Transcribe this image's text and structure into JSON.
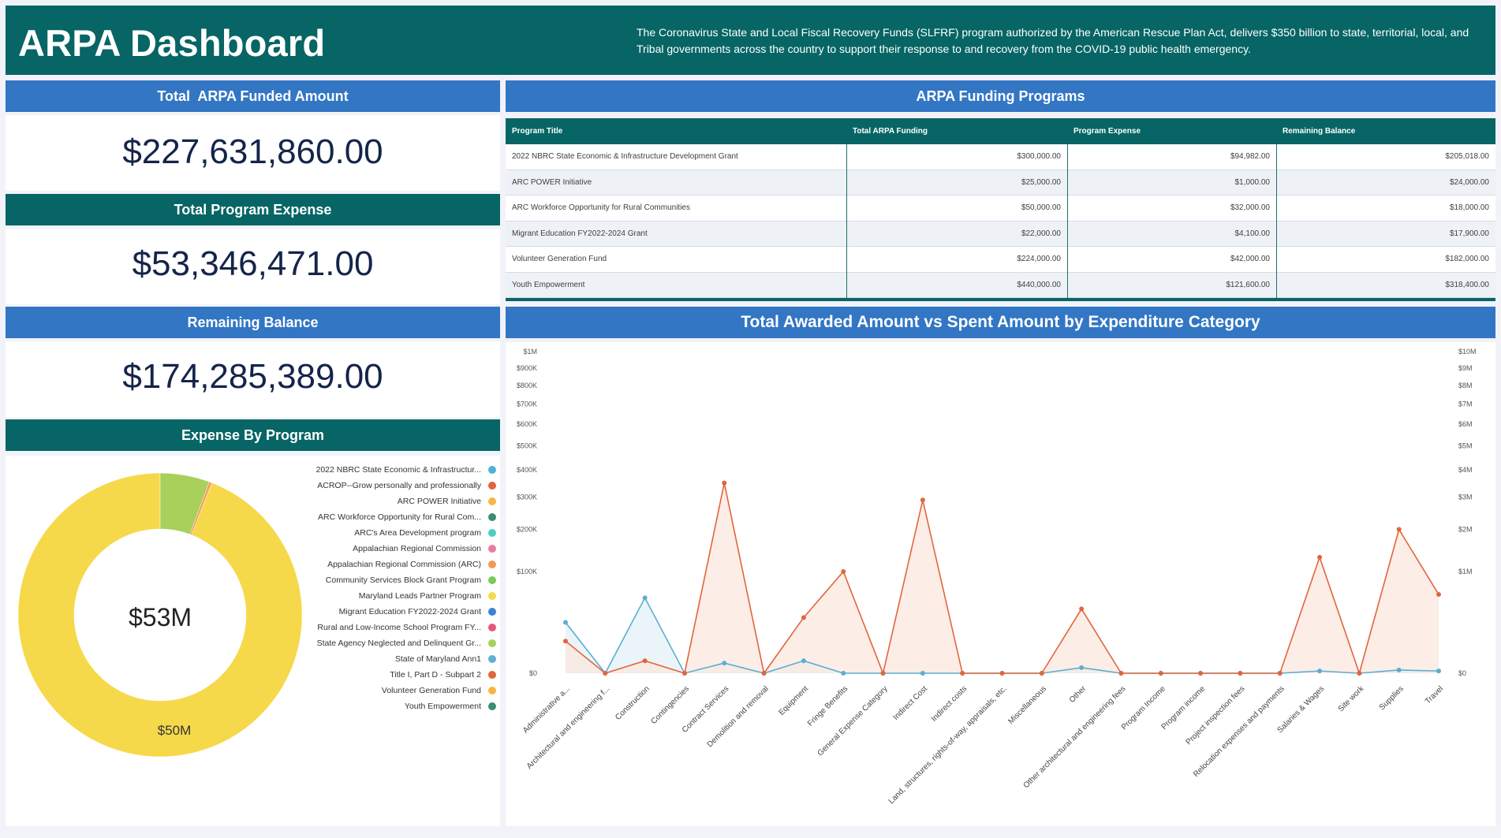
{
  "header": {
    "title": "ARPA Dashboard",
    "description": "The Coronavirus State and Local Fiscal Recovery Funds (SLFRF) program authorized by the American Rescue Plan Act, delivers $350 billion to state, territorial, local, and Tribal governments across the country to support their response to and recovery from the COVID-19 public health emergency."
  },
  "kpis": {
    "funded_label": "Total  ARPA Funded Amount",
    "funded_value": "$227,631,860.00",
    "expense_label": "Total Program Expense",
    "expense_value": "$53,346,471.00",
    "balance_label": "Remaining Balance",
    "balance_value": "$174,285,389.00"
  },
  "programs_table": {
    "title": "ARPA Funding Programs",
    "columns": [
      "Program Title",
      "Total ARPA Funding",
      "Program Expense",
      "Remaining Balance"
    ],
    "rows": [
      [
        "2022 NBRC State Economic & Infrastructure Development Grant",
        "$300,000.00",
        "$94,982.00",
        "$205,018.00"
      ],
      [
        "ARC POWER Initiative",
        "$25,000.00",
        "$1,000.00",
        "$24,000.00"
      ],
      [
        "ARC Workforce Opportunity for Rural Communities",
        "$50,000.00",
        "$32,000.00",
        "$18,000.00"
      ],
      [
        "Migrant Education FY2022-2024 Grant",
        "$22,000.00",
        "$4,100.00",
        "$17,900.00"
      ],
      [
        "Volunteer Generation Fund",
        "$224,000.00",
        "$42,000.00",
        "$182,000.00"
      ],
      [
        "Youth Empowerment",
        "$440,000.00",
        "$121,600.00",
        "$318,400.00"
      ]
    ]
  },
  "expense_by_program": {
    "title": "Expense By Program",
    "center_label": "$53M",
    "slice_label": "$50M",
    "legend": [
      {
        "label": "2022 NBRC State Economic & Infrastructur...",
        "color": "#4fb3d6"
      },
      {
        "label": "ACROP--Grow personally and professionally",
        "color": "#e0663c"
      },
      {
        "label": "ARC POWER Initiative",
        "color": "#f5b642"
      },
      {
        "label": "ARC Workforce Opportunity for Rural Com...",
        "color": "#3d8c74"
      },
      {
        "label": "ARC's Area Development program",
        "color": "#4ecdc4"
      },
      {
        "label": "Appalachian Regional Commission",
        "color": "#ea7aa0"
      },
      {
        "label": "Appalachian Regional Commission (ARC)",
        "color": "#f29a55"
      },
      {
        "label": "Community Services Block Grant Program",
        "color": "#7bc95a"
      },
      {
        "label": "Maryland Leads Partner Program",
        "color": "#f6d94a"
      },
      {
        "label": "Migrant Education FY2022-2024 Grant",
        "color": "#3d82d6"
      },
      {
        "label": "Rural and Low-Income School Program FY...",
        "color": "#e8577a"
      },
      {
        "label": "State Agency Neglected and Delinquent Gr...",
        "color": "#a8d05a"
      },
      {
        "label": "State of Maryland Ann1",
        "color": "#5fb0d4"
      },
      {
        "label": "Title I, Part D - Subpart 2",
        "color": "#e0663c"
      },
      {
        "label": "Volunteer Generation Fund",
        "color": "#f5b642"
      },
      {
        "label": "Youth Empowerment",
        "color": "#3d8c74"
      }
    ]
  },
  "chart_data": [
    {
      "type": "pie",
      "title": "Expense By Program",
      "variant": "donut",
      "slices": [
        {
          "label": "Maryland Leads Partner Program",
          "value": 50.0,
          "color": "#f6d94a"
        },
        {
          "label": "State Agency Neglected and Delinquent Gr...",
          "value": 3.0,
          "color": "#a8d05a"
        },
        {
          "label": "Appalachian Regional Commission (ARC)",
          "value": 0.15,
          "color": "#f29a55"
        }
      ],
      "units": "M"
    },
    {
      "type": "line",
      "title": "Total Awarded Amount vs Spent Amount by Expenditure Category",
      "categories": [
        "Administrative a...",
        "Architectural and engineering f...",
        "Construction",
        "Contingencies",
        "Contract Services",
        "Demolition and removal",
        "Equipment",
        "Fringe Benefits",
        "General Expense Category",
        "Indirect Cost",
        "Indirect costs",
        "Land, structures, rights-of-way, appraisals, etc.",
        "Miscellaneous",
        "Other",
        "Other architectural and engineering fees",
        "Program Income",
        "Program income",
        "Project inspection fees",
        "Relocation expenses and payments",
        "Salaries & Wages",
        "Site work",
        "Supplies",
        "Travel"
      ],
      "left_axis": {
        "scale": "sqrt",
        "ticks": [
          0,
          100000,
          200000,
          300000,
          400000,
          500000,
          600000,
          700000,
          800000,
          900000,
          1000000
        ],
        "tick_labels": [
          "$0",
          "$100K",
          "$200K",
          "$300K",
          "$400K",
          "$500K",
          "$600K",
          "$700K",
          "$800K",
          "$900K",
          "$1M"
        ]
      },
      "right_axis": {
        "scale": "sqrt",
        "ticks": [
          0,
          1000000,
          2000000,
          3000000,
          4000000,
          5000000,
          6000000,
          7000000,
          8000000,
          9000000,
          10000000
        ],
        "tick_labels": [
          "$0",
          "$1M",
          "$2M",
          "$3M",
          "$4M",
          "$5M",
          "$6M",
          "$7M",
          "$8M",
          "$9M",
          "$10M"
        ]
      },
      "series": [
        {
          "color": "#5aaed1",
          "fill": "#e4f1f7",
          "axis": "left",
          "values": [
            25000,
            0,
            55000,
            0,
            1000,
            0,
            1500,
            0,
            0,
            0,
            0,
            0,
            0,
            300,
            0,
            0,
            0,
            0,
            0,
            50,
            0,
            100,
            50
          ]
        },
        {
          "color": "#e0663c",
          "fill": "#fbe7df",
          "axis": "right",
          "values": [
            100000,
            0,
            15000,
            0,
            3500000,
            0,
            300000,
            1000000,
            0,
            2900000,
            0,
            0,
            0,
            400000,
            0,
            0,
            0,
            0,
            0,
            1300000,
            0,
            2000000,
            600000
          ]
        }
      ]
    }
  ]
}
